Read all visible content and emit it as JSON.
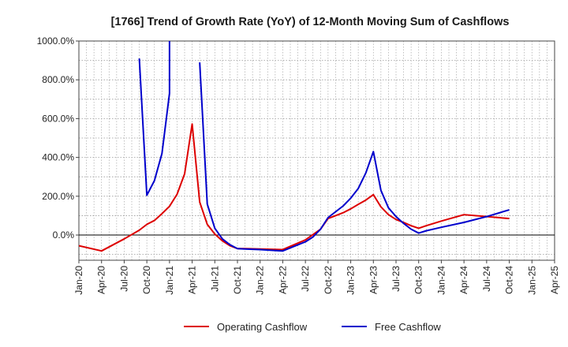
{
  "chart_data": {
    "type": "line",
    "title": "[1766]  Trend of Growth Rate (YoY) of 12-Month Moving Sum of Cashflows",
    "xlabel": "",
    "ylabel": "",
    "ylim": [
      -130,
      1000
    ],
    "y_ticks": [
      {
        "value": 0,
        "label": "0.0%"
      },
      {
        "value": 200,
        "label": "200.0%"
      },
      {
        "value": 400,
        "label": "400.0%"
      },
      {
        "value": 600,
        "label": "600.0%"
      },
      {
        "value": 800,
        "label": "800.0%"
      },
      {
        "value": 1000,
        "label": "1000.0%"
      }
    ],
    "x_range": [
      "2020-01",
      "2025-04"
    ],
    "x_ticks": [
      "Jan-20",
      "Apr-20",
      "Jul-20",
      "Oct-20",
      "Jan-21",
      "Apr-21",
      "Jul-21",
      "Oct-21",
      "Jan-22",
      "Apr-22",
      "Jul-22",
      "Oct-22",
      "Jan-23",
      "Apr-23",
      "Jul-23",
      "Oct-23",
      "Jan-24",
      "Apr-24",
      "Jul-24",
      "Oct-24",
      "Jan-25",
      "Apr-25"
    ],
    "grid": true,
    "legend_position": "bottom-center",
    "series": [
      {
        "name": "Operating Cashflow",
        "color": "#dd0000",
        "points": [
          [
            "2020-01",
            -55
          ],
          [
            "2020-04",
            -82
          ],
          [
            "2020-07",
            -20
          ],
          [
            "2020-09",
            25
          ],
          [
            "2020-10",
            55
          ],
          [
            "2020-11",
            75
          ],
          [
            "2020-12",
            110
          ],
          [
            "2021-01",
            148
          ],
          [
            "2021-02",
            210
          ],
          [
            "2021-03",
            315
          ],
          [
            "2021-04",
            572
          ],
          [
            "2021-05",
            170
          ],
          [
            "2021-06",
            55
          ],
          [
            "2021-07",
            5
          ],
          [
            "2021-08",
            -30
          ],
          [
            "2021-09",
            -55
          ],
          [
            "2021-10",
            -70
          ],
          [
            "2021-11",
            -70
          ],
          [
            "2022-01",
            -72
          ],
          [
            "2022-04",
            -75
          ],
          [
            "2022-07",
            -25
          ],
          [
            "2022-09",
            30
          ],
          [
            "2022-10",
            85
          ],
          [
            "2022-11",
            100
          ],
          [
            "2022-12",
            115
          ],
          [
            "2023-01",
            135
          ],
          [
            "2023-02",
            158
          ],
          [
            "2023-03",
            180
          ],
          [
            "2023-04",
            208
          ],
          [
            "2023-05",
            145
          ],
          [
            "2023-06",
            105
          ],
          [
            "2023-07",
            80
          ],
          [
            "2023-08",
            65
          ],
          [
            "2023-09",
            48
          ],
          [
            "2023-10",
            35
          ],
          [
            "2023-11",
            48
          ],
          [
            "2024-01",
            72
          ],
          [
            "2024-04",
            105
          ],
          [
            "2024-07",
            95
          ],
          [
            "2024-10",
            85
          ]
        ]
      },
      {
        "name": "Free Cashflow",
        "color": "#0000cc",
        "segments": [
          [
            [
              "2020-09",
              910
            ],
            [
              "2020-10",
              205
            ],
            [
              "2020-11",
              280
            ],
            [
              "2020-12",
              420
            ],
            [
              "2021-01",
              730
            ],
            [
              "2021-01",
              1000
            ]
          ],
          [
            [
              "2021-05",
              890
            ],
            [
              "2021-06",
              160
            ],
            [
              "2021-07",
              35
            ],
            [
              "2021-08",
              -20
            ],
            [
              "2021-09",
              -50
            ],
            [
              "2021-10",
              -70
            ],
            [
              "2021-11",
              -72
            ],
            [
              "2022-01",
              -75
            ],
            [
              "2022-04",
              -82
            ],
            [
              "2022-07",
              -35
            ],
            [
              "2022-08",
              -10
            ],
            [
              "2022-09",
              30
            ],
            [
              "2022-10",
              90
            ],
            [
              "2022-11",
              120
            ],
            [
              "2022-12",
              150
            ],
            [
              "2023-01",
              190
            ],
            [
              "2023-02",
              240
            ],
            [
              "2023-03",
              320
            ],
            [
              "2023-04",
              430
            ],
            [
              "2023-05",
              230
            ],
            [
              "2023-06",
              140
            ],
            [
              "2023-07",
              95
            ],
            [
              "2023-08",
              60
            ],
            [
              "2023-09",
              30
            ],
            [
              "2023-10",
              10
            ],
            [
              "2023-11",
              22
            ],
            [
              "2024-01",
              40
            ],
            [
              "2024-04",
              65
            ],
            [
              "2024-07",
              95
            ],
            [
              "2024-10",
              130
            ]
          ]
        ]
      }
    ]
  }
}
